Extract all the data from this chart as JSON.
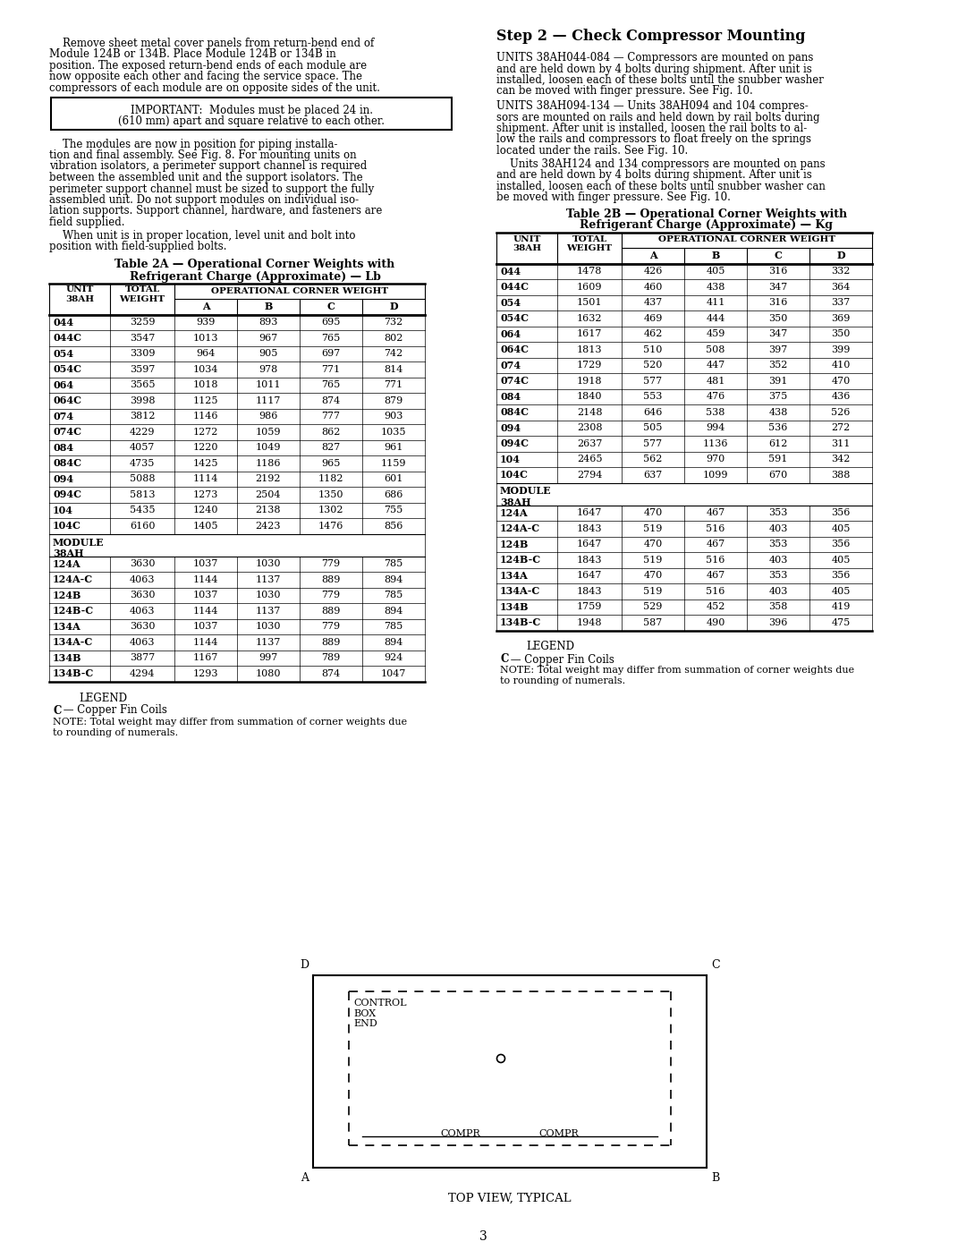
{
  "page_number": "3",
  "important_text_line1": "IMPORTANT:  Modules must be placed 24 in.",
  "important_text_line2": "(610 mm) apart and square relative to each other.",
  "step2_header": "Step 2 — Check Compressor Mounting",
  "para_044_084_lines": [
    "UNITS 38AH044-084 — Compressors are mounted on pans",
    "and are held down by 4 bolts during shipment. After unit is",
    "installed, loosen each of these bolts until the snubber washer",
    "can be moved with finger pressure. See Fig. 10."
  ],
  "para_094_134_lines": [
    "UNITS 38AH094-134 — Units 38AH094 and 104 compres-",
    "sors are mounted on rails and held down by rail bolts during",
    "shipment. After unit is installed, loosen the rail bolts to al-",
    "low the rails and compressors to float freely on the springs",
    "located under the rails. See Fig. 10."
  ],
  "para_124_134_lines": [
    "    Units 38AH124 and 134 compressors are mounted on pans",
    "and are held down by 4 bolts during shipment. After unit is",
    "installed, loosen each of these bolts until snubber washer can",
    "be moved with finger pressure. See Fig. 10."
  ],
  "left_para1_lines": [
    "    Remove sheet metal cover panels from return-bend end of",
    "Module 124B or 134B. Place Module 124B or 134B in",
    "position. The exposed return-bend ends of each module are",
    "now opposite each other and facing the service space. The",
    "compressors of each module are on opposite sides of the unit."
  ],
  "left_para2_lines": [
    "    The modules are now in position for piping installa-",
    "tion and final assembly. See Fig. 8. For mounting units on",
    "vibration isolators, a perimeter support channel is required",
    "between the assembled unit and the support isolators. The",
    "perimeter support channel must be sized to support the fully",
    "assembled unit. Do not support modules on individual iso-",
    "lation supports. Support channel, hardware, and fasteners are",
    "field supplied."
  ],
  "left_para3_lines": [
    "    When unit is in proper location, level unit and bolt into",
    "position with field-supplied bolts."
  ],
  "table2A_title_line1": "Table 2A — Operational Corner Weights with",
  "table2A_title_line2": "Refrigerant Charge (Approximate) — Lb",
  "table2B_title_line1": "Table 2B — Operational Corner Weights with",
  "table2B_title_line2": "Refrigerant Charge (Approximate) — Kg",
  "table2A_data": [
    [
      "044",
      "3259",
      "939",
      "893",
      "695",
      "732"
    ],
    [
      "044C",
      "3547",
      "1013",
      "967",
      "765",
      "802"
    ],
    [
      "054",
      "3309",
      "964",
      "905",
      "697",
      "742"
    ],
    [
      "054C",
      "3597",
      "1034",
      "978",
      "771",
      "814"
    ],
    [
      "064",
      "3565",
      "1018",
      "1011",
      "765",
      "771"
    ],
    [
      "064C",
      "3998",
      "1125",
      "1117",
      "874",
      "879"
    ],
    [
      "074",
      "3812",
      "1146",
      "986",
      "777",
      "903"
    ],
    [
      "074C",
      "4229",
      "1272",
      "1059",
      "862",
      "1035"
    ],
    [
      "084",
      "4057",
      "1220",
      "1049",
      "827",
      "961"
    ],
    [
      "084C",
      "4735",
      "1425",
      "1186",
      "965",
      "1159"
    ],
    [
      "094",
      "5088",
      "1114",
      "2192",
      "1182",
      "601"
    ],
    [
      "094C",
      "5813",
      "1273",
      "2504",
      "1350",
      "686"
    ],
    [
      "104",
      "5435",
      "1240",
      "2138",
      "1302",
      "755"
    ],
    [
      "104C",
      "6160",
      "1405",
      "2423",
      "1476",
      "856"
    ]
  ],
  "table2A_module": [
    [
      "124A",
      "3630",
      "1037",
      "1030",
      "779",
      "785"
    ],
    [
      "124A-C",
      "4063",
      "1144",
      "1137",
      "889",
      "894"
    ],
    [
      "124B",
      "3630",
      "1037",
      "1030",
      "779",
      "785"
    ],
    [
      "124B-C",
      "4063",
      "1144",
      "1137",
      "889",
      "894"
    ],
    [
      "134A",
      "3630",
      "1037",
      "1030",
      "779",
      "785"
    ],
    [
      "134A-C",
      "4063",
      "1144",
      "1137",
      "889",
      "894"
    ],
    [
      "134B",
      "3877",
      "1167",
      "997",
      "789",
      "924"
    ],
    [
      "134B-C",
      "4294",
      "1293",
      "1080",
      "874",
      "1047"
    ]
  ],
  "table2B_data": [
    [
      "044",
      "1478",
      "426",
      "405",
      "316",
      "332"
    ],
    [
      "044C",
      "1609",
      "460",
      "438",
      "347",
      "364"
    ],
    [
      "054",
      "1501",
      "437",
      "411",
      "316",
      "337"
    ],
    [
      "054C",
      "1632",
      "469",
      "444",
      "350",
      "369"
    ],
    [
      "064",
      "1617",
      "462",
      "459",
      "347",
      "350"
    ],
    [
      "064C",
      "1813",
      "510",
      "508",
      "397",
      "399"
    ],
    [
      "074",
      "1729",
      "520",
      "447",
      "352",
      "410"
    ],
    [
      "074C",
      "1918",
      "577",
      "481",
      "391",
      "470"
    ],
    [
      "084",
      "1840",
      "553",
      "476",
      "375",
      "436"
    ],
    [
      "084C",
      "2148",
      "646",
      "538",
      "438",
      "526"
    ],
    [
      "094",
      "2308",
      "505",
      "994",
      "536",
      "272"
    ],
    [
      "094C",
      "2637",
      "577",
      "1136",
      "612",
      "311"
    ],
    [
      "104",
      "2465",
      "562",
      "970",
      "591",
      "342"
    ],
    [
      "104C",
      "2794",
      "637",
      "1099",
      "670",
      "388"
    ]
  ],
  "table2B_module": [
    [
      "124A",
      "1647",
      "470",
      "467",
      "353",
      "356"
    ],
    [
      "124A-C",
      "1843",
      "519",
      "516",
      "403",
      "405"
    ],
    [
      "124B",
      "1647",
      "470",
      "467",
      "353",
      "356"
    ],
    [
      "124B-C",
      "1843",
      "519",
      "516",
      "403",
      "405"
    ],
    [
      "134A",
      "1647",
      "470",
      "467",
      "353",
      "356"
    ],
    [
      "134A-C",
      "1843",
      "519",
      "516",
      "403",
      "405"
    ],
    [
      "134B",
      "1759",
      "529",
      "452",
      "358",
      "419"
    ],
    [
      "134B-C",
      "1948",
      "587",
      "490",
      "396",
      "475"
    ]
  ],
  "legend_title": "LEGEND",
  "legend_c": "C — Copper Fin Coils",
  "legend_note_line1": "NOTE: Total weight may differ from summation of corner weights due",
  "legend_note_line2": "to rounding of numerals.",
  "diagram_D": "D",
  "diagram_C": "C",
  "diagram_A": "A",
  "diagram_B": "B",
  "diagram_control": "CONTROL\nBOX\nEND",
  "diagram_compr_L": "COMPR",
  "diagram_compr_R": "COMPR",
  "diagram_caption": "TOP VIEW, TYPICAL"
}
